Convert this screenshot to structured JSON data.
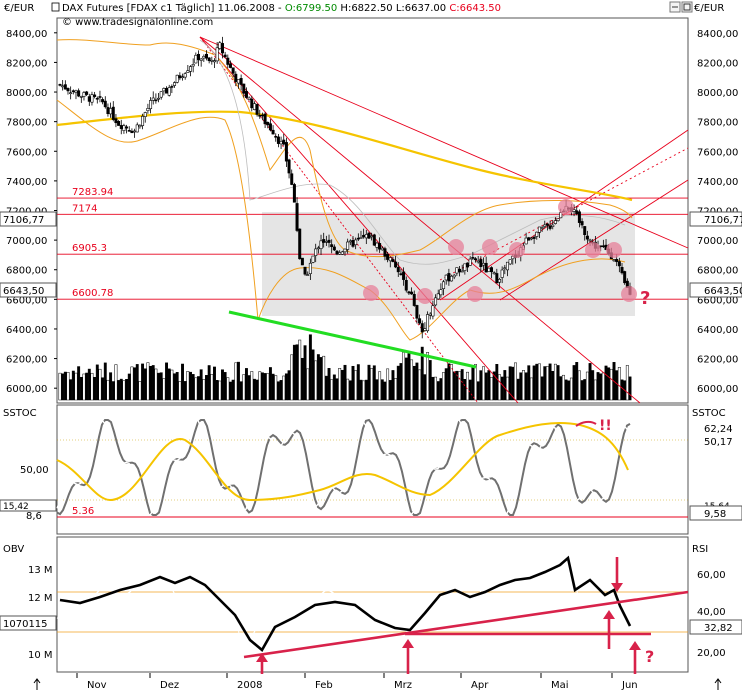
{
  "header": {
    "unit": "€/EUR",
    "title": "DAX Futures [FDAX c1  Täglich] 11.06.2008 - ",
    "open": "O:6799.50",
    "hlc": " H:6822.50 L:6637.00 ",
    "close": "C:6643.50",
    "source": "© www.tradesignalonline.com"
  },
  "colors": {
    "price_line": "#000000",
    "bollinger": "#f0a020",
    "ma_long": "#f5c400",
    "trendlines": "#e8001c",
    "support_line": "#22dd22",
    "markers": "#e7809a",
    "annotation": "#d8224a",
    "last_price_box": "#ffffff"
  },
  "x_axis": {
    "months": [
      "Nov",
      "Dez",
      "2008",
      "Feb",
      "Mrz",
      "Apr",
      "Mai",
      "Jun"
    ]
  },
  "chart_data": [
    {
      "type": "candlestick",
      "title": "DAX Futures [FDAX c1  Täglich]",
      "ylabel": "€/EUR",
      "ylim": [
        5900,
        8500
      ],
      "y_ticks": [
        "6000,00",
        "6200,00",
        "6400,00",
        "6600,00",
        "6800,00",
        "7000,00",
        "7200,00",
        "7400,00",
        "7600,00",
        "7800,00",
        "8000,00",
        "8200,00",
        "8400,00"
      ],
      "levels": [
        {
          "label": "7283.94",
          "value": 7283.94
        },
        {
          "label": "7174",
          "value": 7174
        },
        {
          "label": "6905.3",
          "value": 6905.3
        },
        {
          "label": "6600.78",
          "value": 6600.78
        }
      ],
      "right_labels": [
        "7106,77",
        "6643,50"
      ],
      "last": 6643.5,
      "close_path": [
        [
          0,
          8050
        ],
        [
          8,
          7980
        ],
        [
          16,
          7930
        ],
        [
          22,
          7790
        ],
        [
          28,
          7740
        ],
        [
          34,
          7920
        ],
        [
          40,
          8010
        ],
        [
          46,
          8130
        ],
        [
          52,
          8240
        ],
        [
          57,
          8200
        ],
        [
          60,
          8310
        ],
        [
          64,
          8160
        ],
        [
          68,
          8030
        ],
        [
          72,
          7920
        ],
        [
          76,
          7820
        ],
        [
          80,
          7740
        ],
        [
          84,
          7620
        ],
        [
          86,
          7460
        ],
        [
          88,
          7280
        ],
        [
          90,
          6880
        ],
        [
          92,
          6740
        ],
        [
          94,
          6840
        ],
        [
          98,
          7010
        ],
        [
          104,
          6920
        ],
        [
          110,
          6980
        ],
        [
          116,
          7030
        ],
        [
          122,
          6910
        ],
        [
          128,
          6760
        ],
        [
          132,
          6620
        ],
        [
          134,
          6460
        ],
        [
          136,
          6380
        ],
        [
          138,
          6480
        ],
        [
          140,
          6570
        ],
        [
          144,
          6720
        ],
        [
          148,
          6780
        ],
        [
          152,
          6820
        ],
        [
          156,
          6870
        ],
        [
          160,
          6800
        ],
        [
          164,
          6740
        ],
        [
          168,
          6830
        ],
        [
          172,
          6920
        ],
        [
          176,
          7020
        ],
        [
          180,
          7060
        ],
        [
          184,
          7100
        ],
        [
          188,
          7180
        ],
        [
          190,
          7250
        ],
        [
          192,
          7210
        ],
        [
          196,
          7090
        ],
        [
          200,
          6970
        ],
        [
          204,
          6940
        ],
        [
          208,
          6890
        ],
        [
          210,
          6800
        ],
        [
          212,
          6700
        ],
        [
          214,
          6644
        ]
      ],
      "annotations": [
        "?"
      ]
    },
    {
      "type": "line",
      "title": "SSTOC",
      "ylim": [
        0,
        100
      ],
      "y_ticks": [
        "50,00"
      ],
      "left_labels": [
        "15,42",
        "8,6"
      ],
      "right_labels": [
        "62,24",
        "50,17",
        "15,64",
        "9,58"
      ],
      "level": {
        "label": "5.36",
        "value": 5.36
      },
      "annotations": [
        "!!"
      ]
    },
    {
      "type": "line",
      "title": "OBV",
      "y_ticks": [
        "10 M",
        "12 M",
        "13 M"
      ],
      "left_labels": [
        "1070115"
      ],
      "secondary_title": "RSI",
      "secondary_ticks": [
        "20,00",
        "40,00",
        "60,00"
      ],
      "right_labels": [
        "32,82"
      ],
      "annotations": [
        "?"
      ]
    }
  ]
}
